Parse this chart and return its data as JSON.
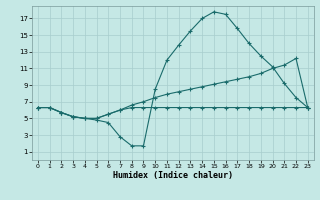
{
  "xlabel": "Humidex (Indice chaleur)",
  "bg_color": "#c5e8e5",
  "grid_color": "#a8cece",
  "line_color": "#1a6b6b",
  "xlim": [
    -0.5,
    23.5
  ],
  "ylim": [
    0,
    18.5
  ],
  "xticks": [
    0,
    1,
    2,
    3,
    4,
    5,
    6,
    7,
    8,
    9,
    10,
    11,
    12,
    13,
    14,
    15,
    16,
    17,
    18,
    19,
    20,
    21,
    22,
    23
  ],
  "yticks": [
    1,
    3,
    5,
    7,
    9,
    11,
    13,
    15,
    17
  ],
  "line1_x": [
    0,
    1,
    2,
    3,
    4,
    5,
    6,
    7,
    8,
    9,
    10,
    11,
    12,
    13,
    14,
    15,
    16,
    17,
    18,
    19,
    20,
    21,
    22,
    23
  ],
  "line1_y": [
    6.3,
    6.3,
    5.7,
    5.2,
    5.0,
    4.8,
    4.5,
    2.8,
    1.7,
    1.7,
    8.5,
    12.0,
    13.8,
    15.5,
    17.0,
    17.8,
    17.5,
    15.8,
    14.0,
    12.5,
    11.2,
    9.2,
    7.5,
    6.3
  ],
  "line2_x": [
    0,
    1,
    2,
    3,
    4,
    5,
    6,
    7,
    8,
    9,
    10,
    11,
    12,
    13,
    14,
    15,
    16,
    17,
    18,
    19,
    20,
    21,
    22,
    23
  ],
  "line2_y": [
    6.3,
    6.3,
    5.7,
    5.2,
    5.0,
    5.0,
    5.5,
    6.0,
    6.6,
    7.0,
    7.5,
    7.9,
    8.2,
    8.5,
    8.8,
    9.1,
    9.4,
    9.7,
    10.0,
    10.4,
    11.0,
    11.4,
    12.2,
    6.3
  ],
  "line3_x": [
    0,
    1,
    2,
    3,
    4,
    5,
    6,
    7,
    8,
    9,
    10,
    11,
    12,
    13,
    14,
    15,
    16,
    17,
    18,
    19,
    20,
    21,
    22,
    23
  ],
  "line3_y": [
    6.3,
    6.3,
    5.7,
    5.2,
    5.0,
    5.0,
    5.5,
    6.0,
    6.3,
    6.3,
    6.3,
    6.3,
    6.3,
    6.3,
    6.3,
    6.3,
    6.3,
    6.3,
    6.3,
    6.3,
    6.3,
    6.3,
    6.3,
    6.3
  ]
}
